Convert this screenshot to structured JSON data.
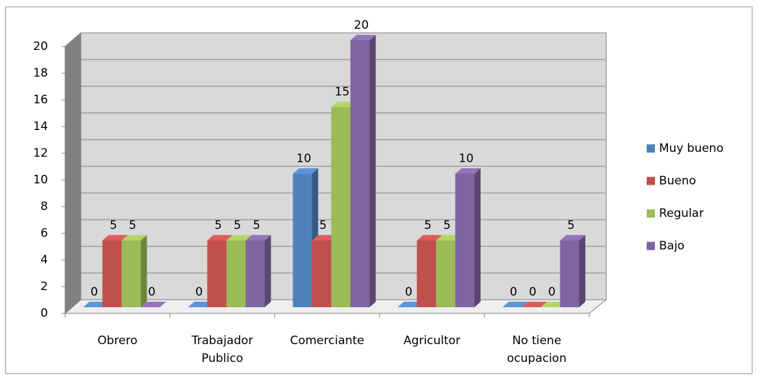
{
  "chart_data": {
    "type": "bar3d",
    "categories": [
      "Obrero",
      "Trabajador\nPublico",
      "Comerciante",
      "Agricultor",
      "No tiene\nocupacion"
    ],
    "series": [
      {
        "name": "Muy bueno",
        "color": "#4f81bd",
        "values": [
          0,
          0,
          10,
          0,
          0
        ]
      },
      {
        "name": "Bueno",
        "color": "#c0504d",
        "values": [
          5,
          5,
          5,
          5,
          0
        ]
      },
      {
        "name": "Regular",
        "color": "#9bbb59",
        "values": [
          5,
          5,
          15,
          5,
          0
        ]
      },
      {
        "name": "Bajo",
        "color": "#8064a2",
        "values": [
          0,
          5,
          20,
          10,
          5
        ]
      }
    ],
    "ylim": [
      0,
      20
    ],
    "yticks": [
      0,
      2,
      4,
      6,
      8,
      10,
      12,
      14,
      16,
      18,
      20
    ],
    "grid": true,
    "legend": "right"
  }
}
